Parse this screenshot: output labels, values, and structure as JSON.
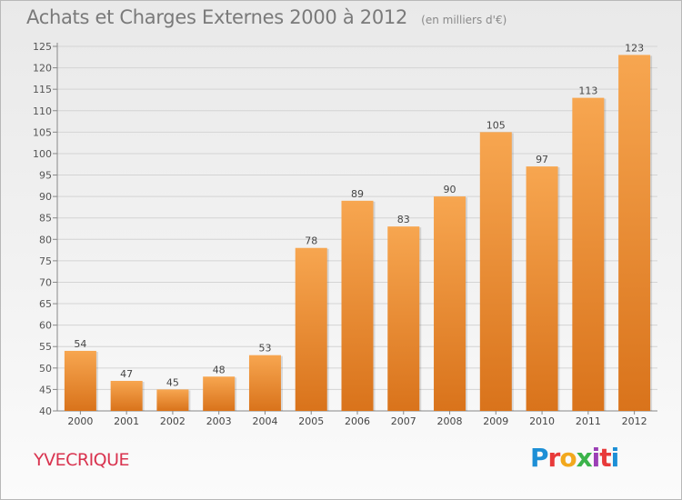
{
  "header": {
    "title": "Achats et Charges Externes 2000 à 2012",
    "unit": "(en milliers d'€)"
  },
  "footer": {
    "commune": "YVECRIQUE",
    "logo_text": "Proxiti"
  },
  "colors": {
    "bar_top": "#f7a650",
    "bar_bottom": "#d9731b",
    "commune": "#d9334f",
    "logo": [
      "#1d8fd6",
      "#e83a3a",
      "#f2a81d",
      "#3bb34a",
      "#9b3fb5",
      "#e83a3a",
      "#1d8fd6"
    ]
  },
  "chart_data": {
    "type": "bar",
    "categories": [
      "2000",
      "2001",
      "2002",
      "2003",
      "2004",
      "2005",
      "2006",
      "2007",
      "2008",
      "2009",
      "2010",
      "2011",
      "2012"
    ],
    "values": [
      54,
      47,
      45,
      48,
      53,
      78,
      89,
      83,
      90,
      105,
      97,
      113,
      123
    ],
    "data_labels": [
      "54",
      "47",
      "45",
      "48",
      "53",
      "78",
      "89",
      "83",
      "90",
      "105",
      "97",
      "113",
      "123"
    ],
    "yticks": [
      "40",
      "45",
      "50",
      "55",
      "60",
      "65",
      "70",
      "75",
      "80",
      "85",
      "90",
      "95",
      "100",
      "105",
      "110",
      "115",
      "120",
      "125"
    ],
    "ylim": [
      40,
      125
    ],
    "grid": true,
    "title": "Achats et Charges Externes 2000 à 2012",
    "xlabel": "",
    "ylabel": ""
  }
}
